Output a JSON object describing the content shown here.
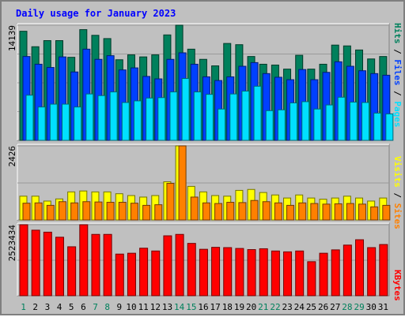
{
  "title": "Daily usage for January 2023",
  "colors": {
    "hits": "#00805c",
    "files": "#0040ff",
    "pages": "#00e0ff",
    "visits": "#ffff00",
    "sites": "#ff8000",
    "kbytes": "#ff0000",
    "weekday_label": "#000000",
    "weekend_label": "#00805c",
    "title": "#0000ff",
    "background": "#c0c0c0",
    "panel": "#c0c0c0",
    "grid": "#a0a0a0"
  },
  "chart_data": [
    {
      "type": "bar",
      "name": "hits-files-pages",
      "ymax_label": "14139",
      "ylim": [
        0,
        14139
      ],
      "categories": [
        "1",
        "2",
        "3",
        "4",
        "5",
        "6",
        "7",
        "8",
        "9",
        "10",
        "11",
        "12",
        "13",
        "14",
        "15",
        "16",
        "17",
        "18",
        "19",
        "20",
        "21",
        "22",
        "23",
        "24",
        "25",
        "26",
        "27",
        "28",
        "29",
        "30",
        "31"
      ],
      "weekend_days": [
        1,
        7,
        8,
        14,
        15,
        21,
        22,
        28,
        29
      ],
      "series": [
        {
          "name": "Hits",
          "values": [
            13400,
            11500,
            12250,
            12250,
            10200,
            13600,
            12900,
            12500,
            9900,
            10500,
            10250,
            10500,
            12950,
            14139,
            11200,
            9950,
            9150,
            11900,
            11750,
            10300,
            9350,
            9250,
            8750,
            10450,
            8750,
            9350,
            11700,
            11600,
            11100,
            10000,
            10300
          ]
        },
        {
          "name": "Files",
          "values": [
            10300,
            9350,
            8950,
            10250,
            8400,
            11200,
            9950,
            10400,
            8650,
            8900,
            7850,
            7550,
            9950,
            10750,
            9350,
            7800,
            7350,
            7800,
            9100,
            9550,
            8200,
            7750,
            7450,
            8700,
            7450,
            8350,
            9650,
            9100,
            8550,
            8200,
            8000
          ]
        },
        {
          "name": "Pages",
          "values": [
            5550,
            4100,
            4450,
            4450,
            4100,
            5700,
            5500,
            5950,
            4650,
            4850,
            5200,
            5250,
            5950,
            7600,
            5950,
            5650,
            3850,
            5700,
            6050,
            6650,
            3650,
            3750,
            4600,
            4750,
            3850,
            4350,
            5300,
            4700,
            4650,
            3350,
            3250
          ]
        }
      ]
    },
    {
      "type": "bar",
      "name": "visits-sites",
      "ymax_label": "2426",
      "ylim": [
        0,
        2426
      ],
      "categories": [
        "1",
        "2",
        "3",
        "4",
        "5",
        "6",
        "7",
        "8",
        "9",
        "10",
        "11",
        "12",
        "13",
        "14",
        "15",
        "16",
        "17",
        "18",
        "19",
        "20",
        "21",
        "22",
        "23",
        "24",
        "25",
        "26",
        "27",
        "28",
        "29",
        "30",
        "31"
      ],
      "series": [
        {
          "name": "Visits",
          "values": [
            780,
            780,
            620,
            690,
            920,
            950,
            920,
            920,
            860,
            800,
            750,
            800,
            1250,
            2426,
            1100,
            920,
            800,
            780,
            970,
            1000,
            900,
            820,
            720,
            820,
            720,
            680,
            720,
            780,
            720,
            620,
            720
          ]
        },
        {
          "name": "Sites",
          "values": [
            550,
            560,
            480,
            600,
            560,
            600,
            590,
            580,
            580,
            550,
            480,
            500,
            1200,
            2426,
            750,
            560,
            540,
            580,
            570,
            640,
            600,
            560,
            480,
            560,
            540,
            520,
            530,
            540,
            520,
            430,
            480
          ]
        }
      ]
    },
    {
      "type": "bar",
      "name": "kbytes",
      "ymax_label": "2523434",
      "ylim": [
        0,
        2523434
      ],
      "categories": [
        "1",
        "2",
        "3",
        "4",
        "5",
        "6",
        "7",
        "8",
        "9",
        "10",
        "11",
        "12",
        "13",
        "14",
        "15",
        "16",
        "17",
        "18",
        "19",
        "20",
        "21",
        "22",
        "23",
        "24",
        "25",
        "26",
        "27",
        "28",
        "29",
        "30",
        "31"
      ],
      "series": [
        {
          "name": "KBytes",
          "values": [
            2523434,
            2330000,
            2260000,
            2080000,
            1740000,
            2523434,
            2180000,
            2180000,
            1480000,
            1510000,
            1690000,
            1590000,
            2130000,
            2180000,
            1860000,
            1650000,
            1720000,
            1710000,
            1680000,
            1640000,
            1670000,
            1590000,
            1560000,
            1590000,
            1210000,
            1510000,
            1630000,
            1800000,
            1990000,
            1710000,
            1820000
          ]
        }
      ]
    }
  ],
  "side_labels": {
    "top": [
      {
        "text": "Pages",
        "color_key": "pages"
      },
      {
        "text": " / ",
        "color_key": "weekday_label"
      },
      {
        "text": "Files",
        "color_key": "files"
      },
      {
        "text": " / ",
        "color_key": "weekday_label"
      },
      {
        "text": "Hits",
        "color_key": "hits"
      }
    ],
    "middle": [
      {
        "text": "Sites",
        "color_key": "sites"
      },
      {
        "text": " / ",
        "color_key": "weekday_label"
      },
      {
        "text": "Visits",
        "color_key": "visits"
      }
    ],
    "bottom": [
      {
        "text": "KBytes",
        "color_key": "kbytes"
      }
    ]
  }
}
